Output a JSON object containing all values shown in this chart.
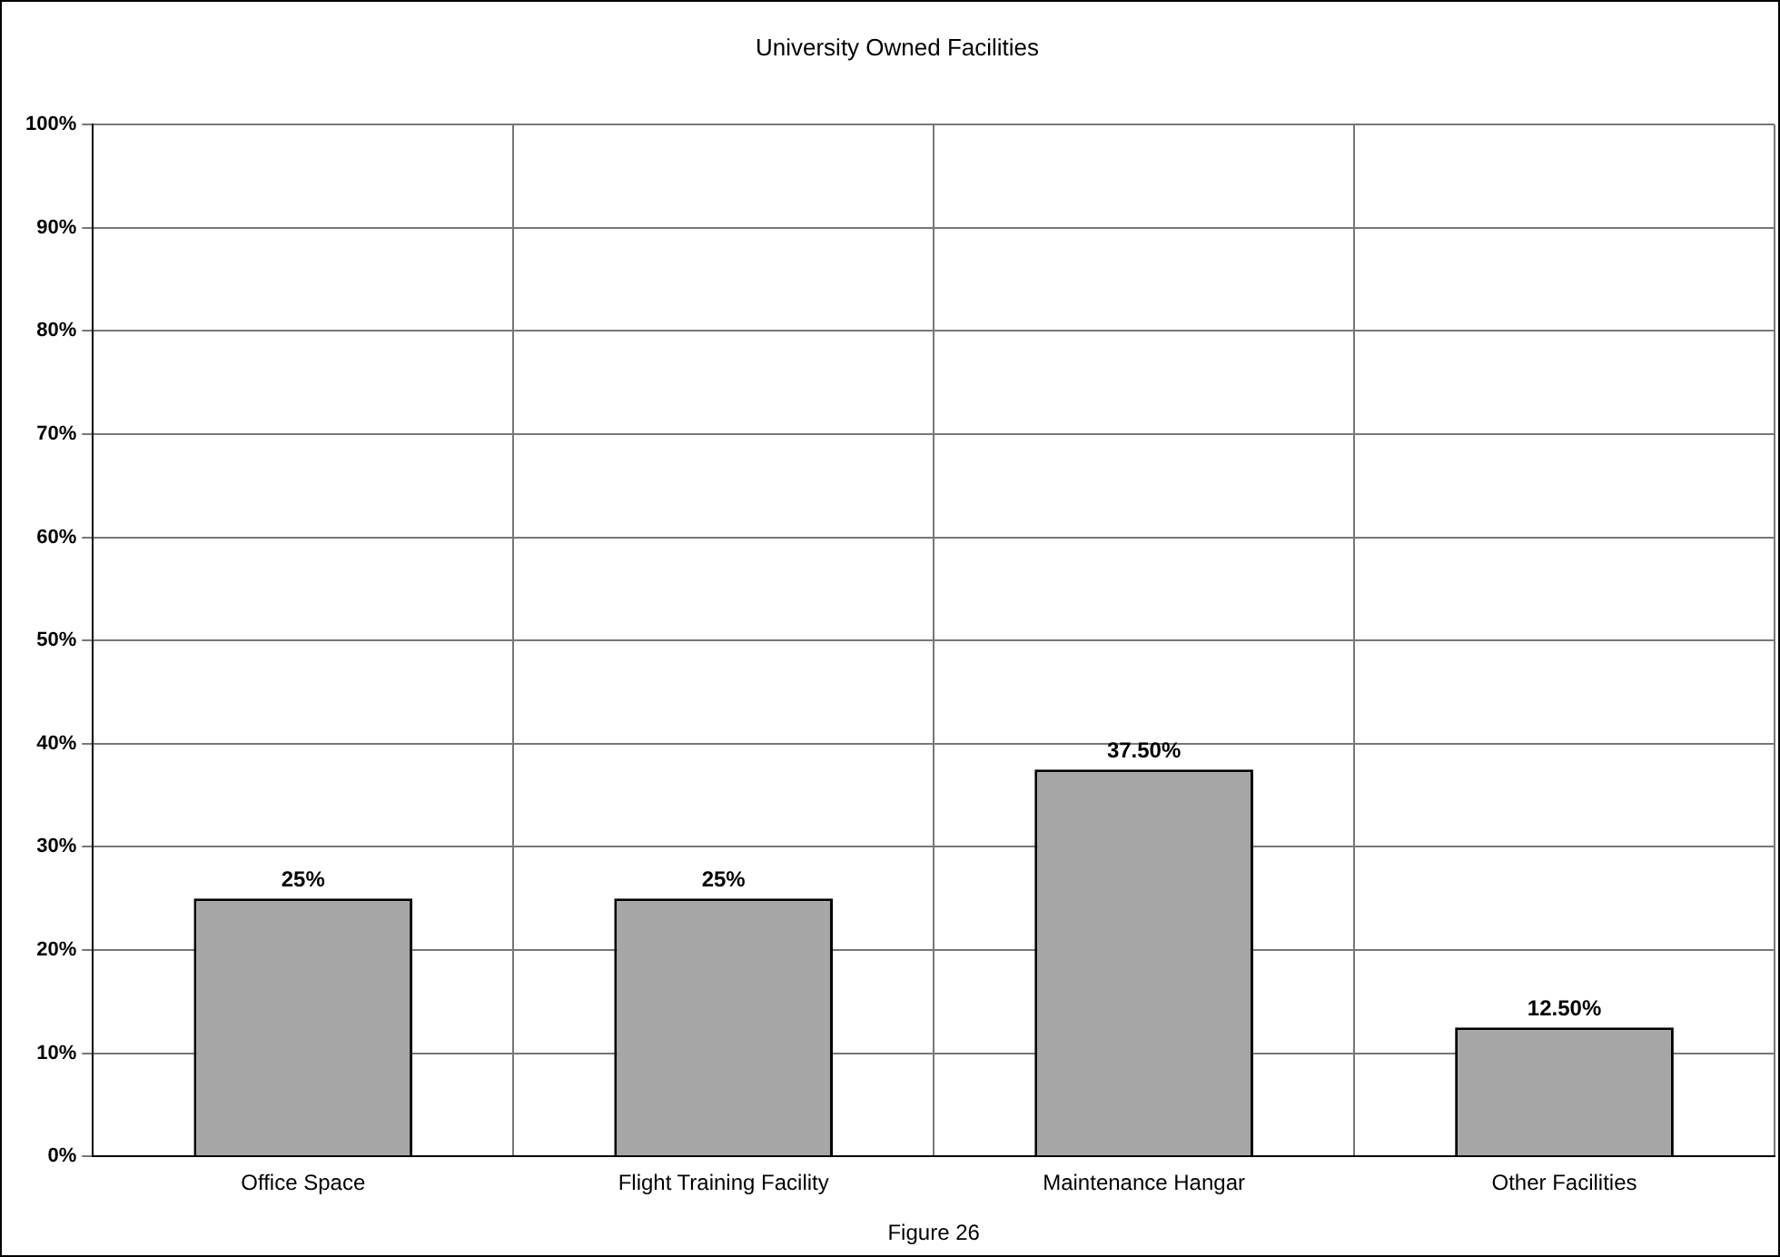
{
  "chart_data": {
    "type": "bar",
    "title": "University Owned Facilities",
    "categories": [
      "Office Space",
      "Flight Training Facility",
      "Maintenance Hangar",
      "Other Facilities"
    ],
    "values": [
      25,
      25,
      37.5,
      12.5
    ],
    "color": "#a6a6a6",
    "value_labels": [
      "25%",
      "25%",
      "37.50%",
      "12.50%"
    ],
    "ylim": [
      0,
      100
    ],
    "yticks": [
      {
        "value": 0,
        "label": "0%"
      },
      {
        "value": 10,
        "label": "10%"
      },
      {
        "value": 20,
        "label": "20%"
      },
      {
        "value": 30,
        "label": "30%"
      },
      {
        "value": 40,
        "label": "40%"
      },
      {
        "value": 50,
        "label": "50%"
      },
      {
        "value": 60,
        "label": "60%"
      },
      {
        "value": 70,
        "label": "70%"
      },
      {
        "value": 80,
        "label": "80%"
      },
      {
        "value": 90,
        "label": "90%"
      },
      {
        "value": 100,
        "label": "100%"
      }
    ],
    "grid": true,
    "annotations": [
      "Figure 26"
    ]
  }
}
